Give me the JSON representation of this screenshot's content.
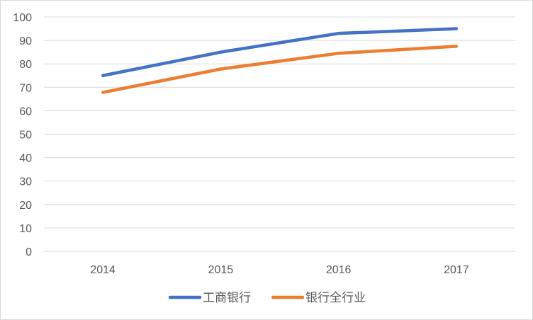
{
  "chart_data": {
    "type": "line",
    "categories": [
      "2014",
      "2015",
      "2016",
      "2017"
    ],
    "series": [
      {
        "name": "工商银行",
        "values": [
          75,
          85,
          93,
          95
        ],
        "color": "#4472c4"
      },
      {
        "name": "银行全行业",
        "values": [
          67.8,
          77.8,
          84.5,
          87.5
        ],
        "color": "#ed7d31"
      }
    ],
    "y_ticks": [
      "0",
      "10",
      "20",
      "30",
      "40",
      "50",
      "60",
      "70",
      "80",
      "90",
      "100"
    ],
    "ylim": [
      0,
      100
    ],
    "grid": true,
    "legend": "bottom",
    "gridline_color": "#d9d9d9"
  }
}
